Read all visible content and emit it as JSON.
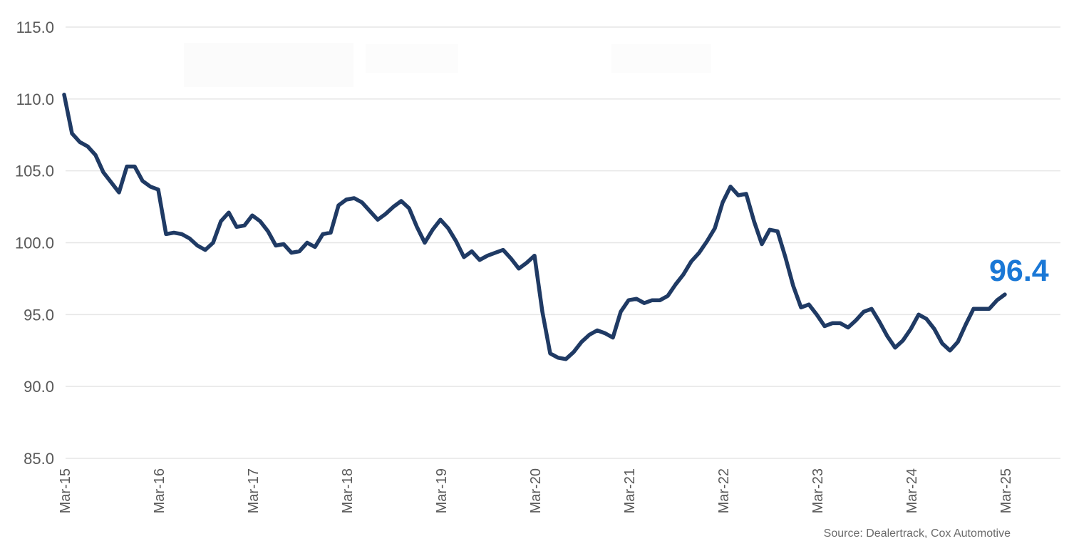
{
  "page": {
    "latest_value_label": "96.4",
    "source_note": "Source: Dealertrack, Cox Automotive"
  },
  "chart_data": {
    "type": "line",
    "title": "",
    "legend": "none",
    "grid": "horizontal",
    "ylim": [
      85.0,
      115.0
    ],
    "y_ticks": [
      115.0,
      110.0,
      105.0,
      100.0,
      95.0,
      90.0,
      85.0
    ],
    "y_tick_format": "one-decimal",
    "x_tick_labels": [
      "Mar-15",
      "Mar-16",
      "Mar-17",
      "Mar-18",
      "Mar-19",
      "Mar-20",
      "Mar-21",
      "Mar-22",
      "Mar-23",
      "Mar-24",
      "Mar-25"
    ],
    "x_ticks_every_n_points": 12,
    "x_frequency": "monthly",
    "annotations": [
      {
        "text": "96.4",
        "position": "end-of-line",
        "color": "#1a78d6"
      }
    ],
    "source": "Source: Dealertrack, Cox Automotive",
    "series": [
      {
        "name": "",
        "color": "#1f3a64",
        "values": [
          110.3,
          107.6,
          107.0,
          106.7,
          106.1,
          104.9,
          104.2,
          103.5,
          105.3,
          105.3,
          104.3,
          103.9,
          103.7,
          100.6,
          100.7,
          100.6,
          100.3,
          99.8,
          99.5,
          100.0,
          101.5,
          102.1,
          101.1,
          101.2,
          101.9,
          101.5,
          100.8,
          99.8,
          99.9,
          99.3,
          99.4,
          100.0,
          99.7,
          100.6,
          100.7,
          102.6,
          103.0,
          103.1,
          102.8,
          102.2,
          101.6,
          102.0,
          102.5,
          102.9,
          102.4,
          101.1,
          100.0,
          100.9,
          101.6,
          101.0,
          100.1,
          99.0,
          99.4,
          98.8,
          99.1,
          99.3,
          99.5,
          98.9,
          98.2,
          98.6,
          99.1,
          95.2,
          92.3,
          92.0,
          91.9,
          92.4,
          93.1,
          93.6,
          93.9,
          93.7,
          93.4,
          95.2,
          96.0,
          96.1,
          95.8,
          96.0,
          96.0,
          96.3,
          97.1,
          97.8,
          98.7,
          99.3,
          100.1,
          101.0,
          102.8,
          103.9,
          103.3,
          103.4,
          101.5,
          99.9,
          100.9,
          100.8,
          99.0,
          97.0,
          95.5,
          95.7,
          95.0,
          94.2,
          94.4,
          94.4,
          94.1,
          94.6,
          95.2,
          95.4,
          94.5,
          93.5,
          92.7,
          93.2,
          94.0,
          95.0,
          94.7,
          94.0,
          93.0,
          92.5,
          93.1,
          94.3,
          95.4,
          95.4,
          95.4,
          96.0,
          96.4
        ]
      }
    ]
  }
}
